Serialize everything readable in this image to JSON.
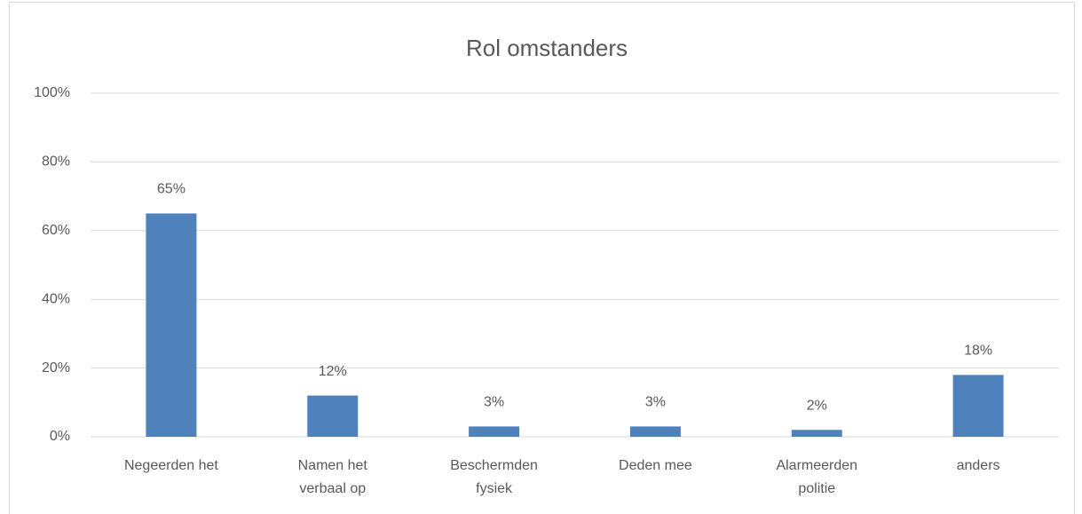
{
  "chart_data": {
    "type": "bar",
    "title": "Rol omstanders",
    "categories": [
      "Negeerden het",
      "Namen het verbaal op",
      "Beschermden fysiek",
      "Deden mee",
      "Alarmeerden politie",
      "anders"
    ],
    "values": [
      65,
      12,
      3,
      3,
      2,
      18
    ],
    "value_labels": [
      "65%",
      "12%",
      "3%",
      "3%",
      "2%",
      "18%"
    ],
    "color": "#4f81bd",
    "ylim": [
      0,
      100
    ],
    "yticks": [
      {
        "value": 0,
        "label": "0%"
      },
      {
        "value": 20,
        "label": "20%"
      },
      {
        "value": 40,
        "label": "40%"
      },
      {
        "value": 60,
        "label": "60%"
      },
      {
        "value": 80,
        "label": "80%"
      },
      {
        "value": 100,
        "label": "100%"
      }
    ],
    "grid": true
  }
}
